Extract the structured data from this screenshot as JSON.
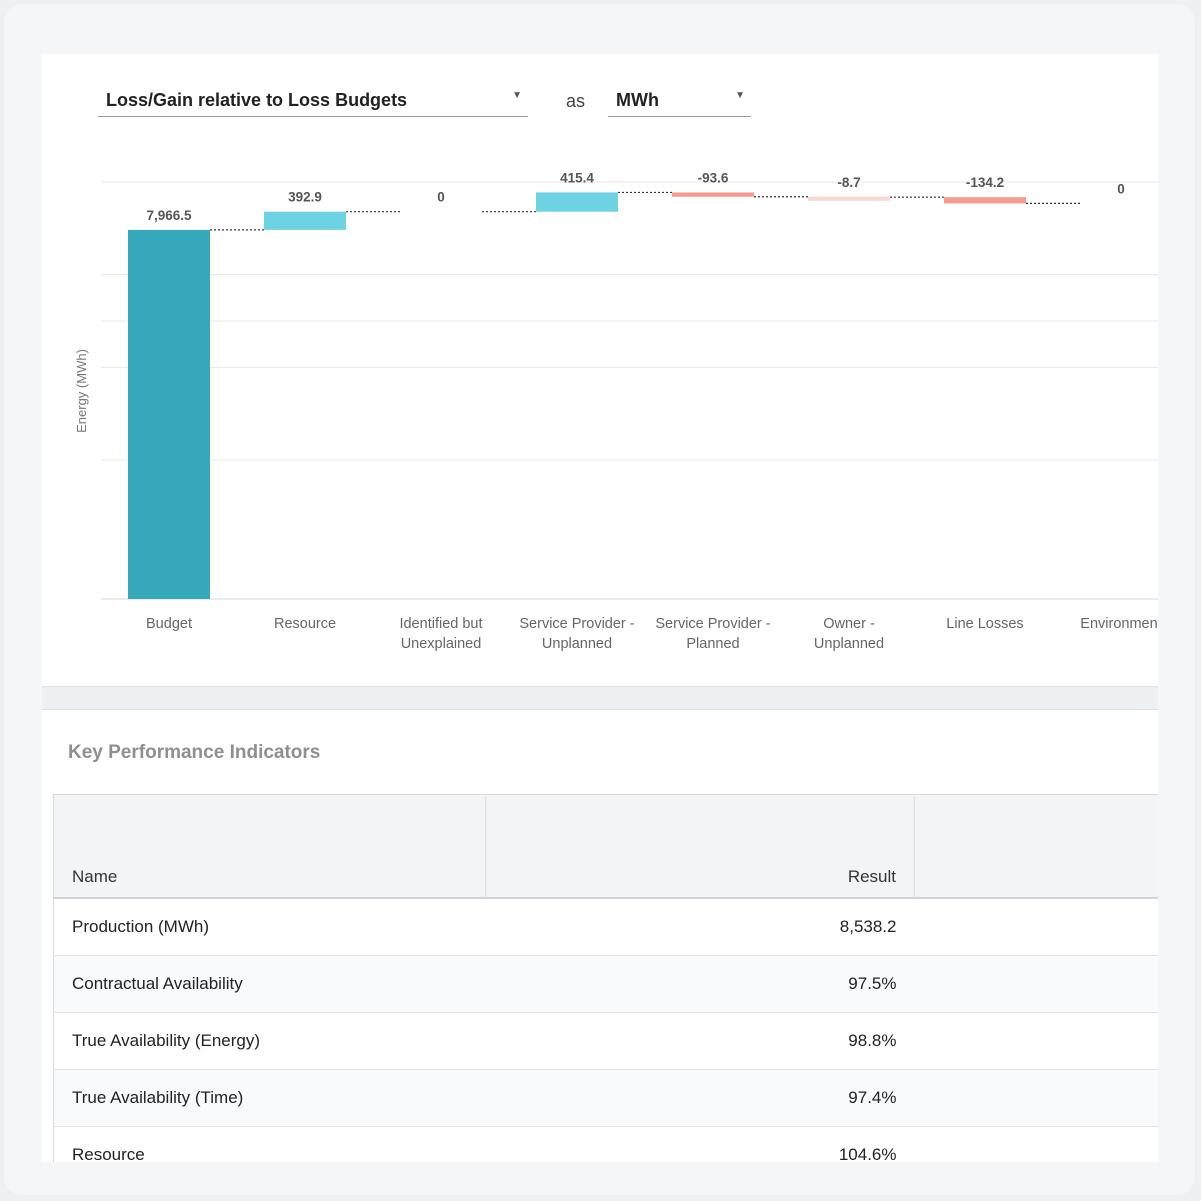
{
  "controls": {
    "metric_select": "Loss/Gain relative to Loss Budgets",
    "as_label": "as",
    "unit_select": "MWh"
  },
  "chart_data": {
    "type": "bar",
    "subtype": "waterfall",
    "ylabel": "Energy (MWh)",
    "categories": [
      [
        "Budget"
      ],
      [
        "Resource"
      ],
      [
        "Identified but",
        "Unexplained"
      ],
      [
        "Service Provider -",
        "Unplanned"
      ],
      [
        "Service Provider -",
        "Planned"
      ],
      [
        "Owner -",
        "Unplanned"
      ],
      [
        "Line Losses"
      ],
      [
        "Environment"
      ]
    ],
    "values": [
      7966.5,
      392.9,
      0,
      415.4,
      -93.6,
      -8.7,
      -134.2,
      0
    ],
    "value_labels": [
      "7,966.5",
      "392.9",
      "0",
      "415.4",
      "-93.6",
      "-8.7",
      "-134.2",
      "0"
    ],
    "ylim": [
      0,
      9000
    ],
    "grid": true,
    "colors": {
      "budget": "#35a8bc",
      "gain": "#6dd3e3",
      "loss": "#f49b8e",
      "loss_light": "#fbd5cf"
    }
  },
  "kpi": {
    "title": "Key Performance Indicators",
    "headers": {
      "name": "Name",
      "result": "Result"
    },
    "rows": [
      {
        "name": "Production (MWh)",
        "result": "8,538.2"
      },
      {
        "name": "Contractual Availability",
        "result": "97.5%"
      },
      {
        "name": "True Availability (Energy)",
        "result": "98.8%"
      },
      {
        "name": "True Availability (Time)",
        "result": "97.4%"
      },
      {
        "name": "Resource",
        "result": "104.6%"
      }
    ]
  }
}
